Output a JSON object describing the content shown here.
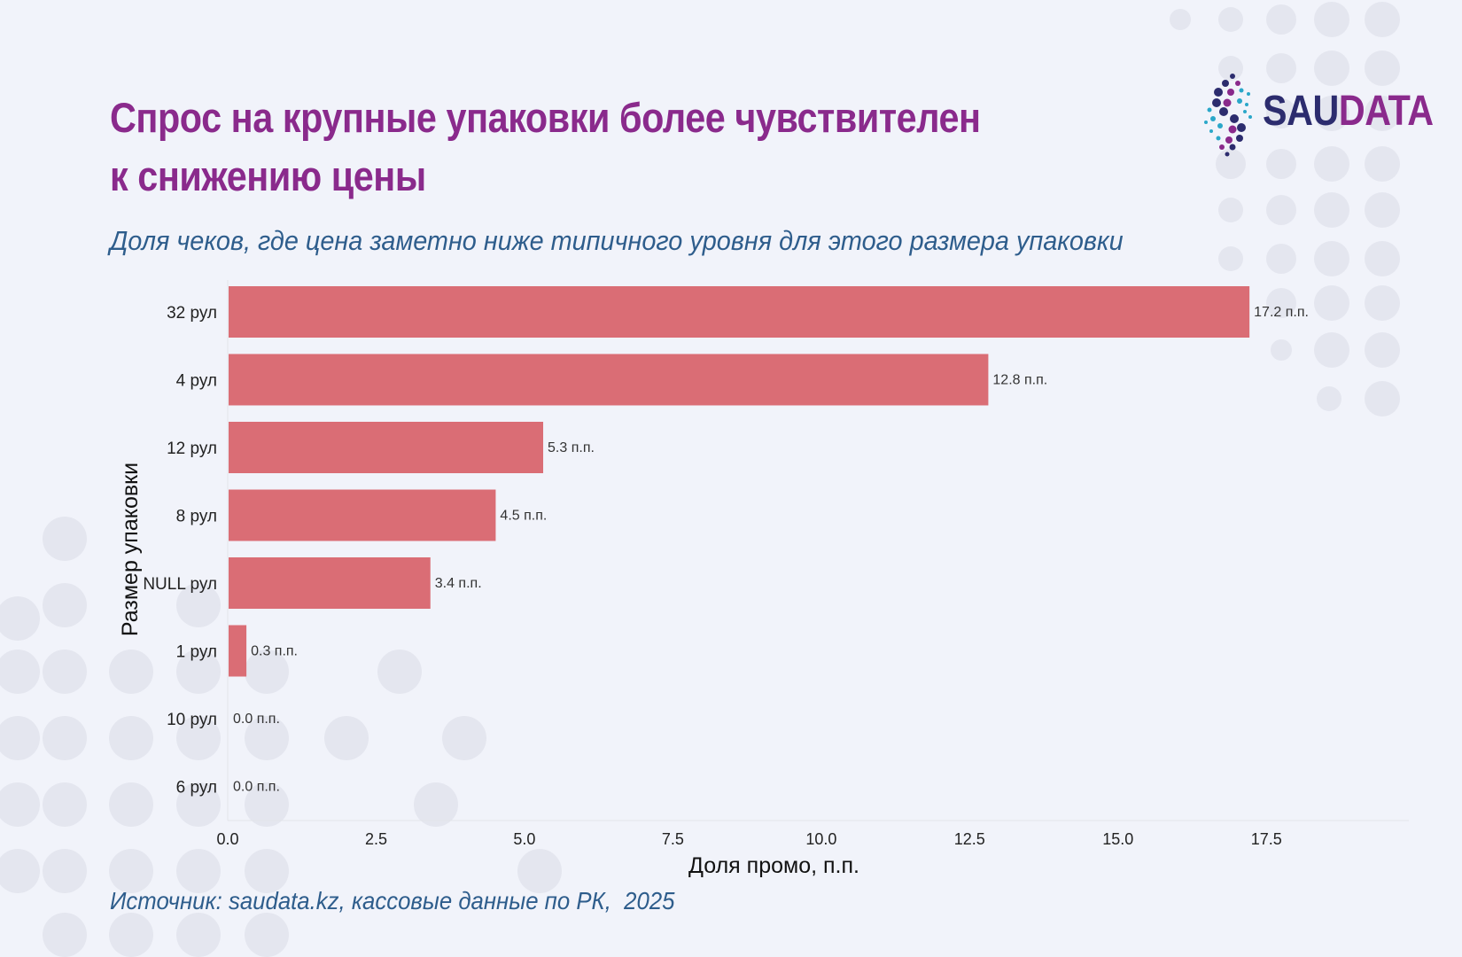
{
  "header": {
    "title_line1": "Спрос на крупные упаковки более чувствителен",
    "title_line2": "к снижению цены",
    "subtitle": "Доля чеков, где цена заметно ниже типичного уровня для этого размера упаковки"
  },
  "logo": {
    "part1": "SAU",
    "part2": "DATA"
  },
  "footer": {
    "source": "Источник: saudata.kz, кассовые данные по РК,  2025"
  },
  "colors": {
    "title": "#8a2a8c",
    "subtitle": "#2e5d8c",
    "bar": "#da6d75",
    "background": "#f1f3fa",
    "dots": "#e4e6ef"
  },
  "chart_data": {
    "type": "bar",
    "orientation": "horizontal",
    "categories": [
      "32 рул",
      "4 рул",
      "12 рул",
      "8 рул",
      "NULL рул",
      "1 рул",
      "10 рул",
      "6 рул"
    ],
    "values": [
      17.2,
      12.8,
      5.3,
      4.5,
      3.4,
      0.3,
      0.0,
      0.0
    ],
    "data_labels": [
      "17.2 п.п.",
      "12.8 п.п.",
      "5.3 п.п.",
      "4.5 п.п.",
      "3.4 п.п.",
      "0.3 п.п.",
      "0.0 п.п.",
      "0.0 п.п."
    ],
    "xlabel": "Доля промо, п.п.",
    "ylabel": "Размер упаковки",
    "xlim": [
      0,
      19.9
    ],
    "xticks": [
      0.0,
      2.5,
      5.0,
      7.5,
      10.0,
      12.5,
      15.0,
      17.5
    ],
    "xtick_labels": [
      "0.0",
      "2.5",
      "5.0",
      "7.5",
      "10.0",
      "12.5",
      "15.0",
      "17.5"
    ],
    "grid": false
  }
}
